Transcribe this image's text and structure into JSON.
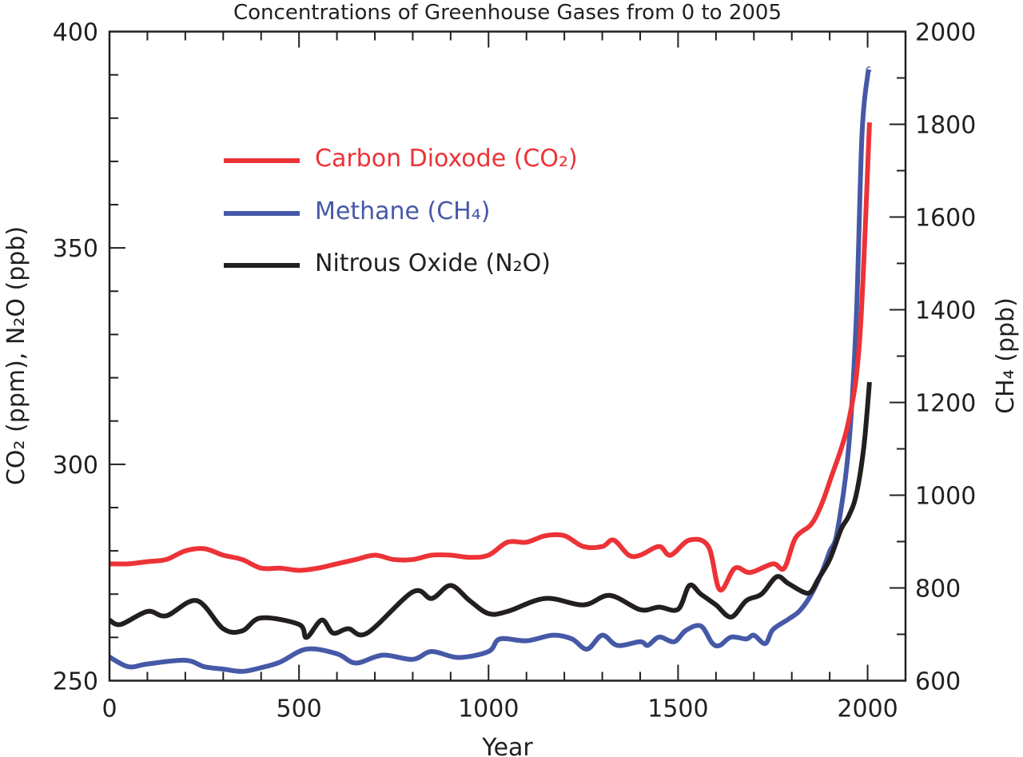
{
  "chart_data": {
    "type": "line",
    "title": "Concentrations of Greenhouse Gases from 0 to 2005",
    "xlabel": "Year",
    "ylabel_left": "CO₂ (ppm), N₂O (ppb)",
    "ylabel_right": "CH₄ (ppb)",
    "xlim": [
      0,
      2100
    ],
    "ylim_left": [
      250,
      400
    ],
    "ylim_right": [
      600,
      2000
    ],
    "x_ticks": [
      "0",
      "500",
      "1000",
      "1500",
      "2000"
    ],
    "y_left_ticks": [
      "250",
      "300",
      "350",
      "400"
    ],
    "y_right_ticks": [
      "600",
      "800",
      "1000",
      "1200",
      "1400",
      "1600",
      "1800",
      "2000"
    ],
    "grid": false,
    "legend_placement": "top-left",
    "series": [
      {
        "name": "Carbon Dioxode (CO₂)",
        "axis": "left",
        "color": "#ec3337",
        "x": [
          0,
          50,
          100,
          150,
          200,
          250,
          300,
          350,
          400,
          450,
          500,
          550,
          600,
          650,
          700,
          750,
          800,
          850,
          900,
          950,
          1000,
          1050,
          1100,
          1150,
          1200,
          1250,
          1300,
          1330,
          1370,
          1400,
          1450,
          1480,
          1530,
          1580,
          1610,
          1650,
          1690,
          1750,
          1780,
          1810,
          1850,
          1875,
          1900,
          1950,
          1980,
          2005
        ],
        "y": [
          277,
          277,
          277.5,
          278,
          280,
          280.5,
          279,
          278,
          276,
          276,
          275.5,
          276,
          277,
          278,
          279,
          278,
          278,
          279,
          279,
          278.5,
          279,
          282,
          282,
          283.5,
          283.5,
          281,
          281,
          282.5,
          279,
          279,
          281,
          279,
          282.5,
          281,
          271,
          276,
          275,
          277,
          276,
          283,
          286,
          290,
          296,
          310,
          330,
          379
        ]
      },
      {
        "name": "Methane (CH₄)",
        "axis": "right",
        "color": "#4659a7",
        "x": [
          0,
          50,
          100,
          200,
          250,
          300,
          350,
          400,
          450,
          520,
          600,
          650,
          720,
          800,
          850,
          920,
          1000,
          1030,
          1100,
          1170,
          1220,
          1260,
          1300,
          1340,
          1400,
          1420,
          1450,
          1490,
          1520,
          1560,
          1590,
          1610,
          1640,
          1680,
          1700,
          1730,
          1750,
          1790,
          1820,
          1850,
          1880,
          1900,
          1920,
          1950,
          1970,
          1985,
          2000,
          2005
        ],
        "y": [
          651,
          630,
          636,
          644,
          630,
          625,
          620,
          628,
          640,
          668,
          658,
          638,
          655,
          646,
          663,
          650,
          663,
          690,
          686,
          698,
          690,
          668,
          698,
          676,
          684,
          676,
          694,
          684,
          708,
          718,
          681,
          676,
          694,
          690,
          698,
          680,
          710,
          732,
          750,
          784,
          835,
          879,
          922,
          1103,
          1379,
          1775,
          1905,
          1918
        ]
      },
      {
        "name": "Nitrous Oxide (N₂O)",
        "axis": "left",
        "color": "#231f20",
        "x": [
          0,
          30,
          100,
          150,
          230,
          300,
          350,
          400,
          500,
          520,
          560,
          590,
          630,
          680,
          800,
          850,
          900,
          950,
          1000,
          1050,
          1150,
          1250,
          1320,
          1400,
          1450,
          1500,
          1530,
          1560,
          1600,
          1640,
          1680,
          1720,
          1760,
          1790,
          1830,
          1850,
          1870,
          1900,
          1930,
          1950,
          1970,
          1990,
          2005
        ],
        "y": [
          264,
          263,
          266,
          265,
          268.5,
          262,
          261.5,
          264.5,
          263,
          260,
          264,
          261,
          262,
          261,
          270.5,
          269,
          272,
          268.5,
          265.5,
          266,
          269,
          267.5,
          269.7,
          266.4,
          267,
          266.5,
          272,
          270,
          267.5,
          264.7,
          268.5,
          270,
          274,
          272.5,
          270.5,
          270.5,
          273.5,
          278,
          285,
          288,
          293,
          304,
          319
        ]
      }
    ]
  }
}
